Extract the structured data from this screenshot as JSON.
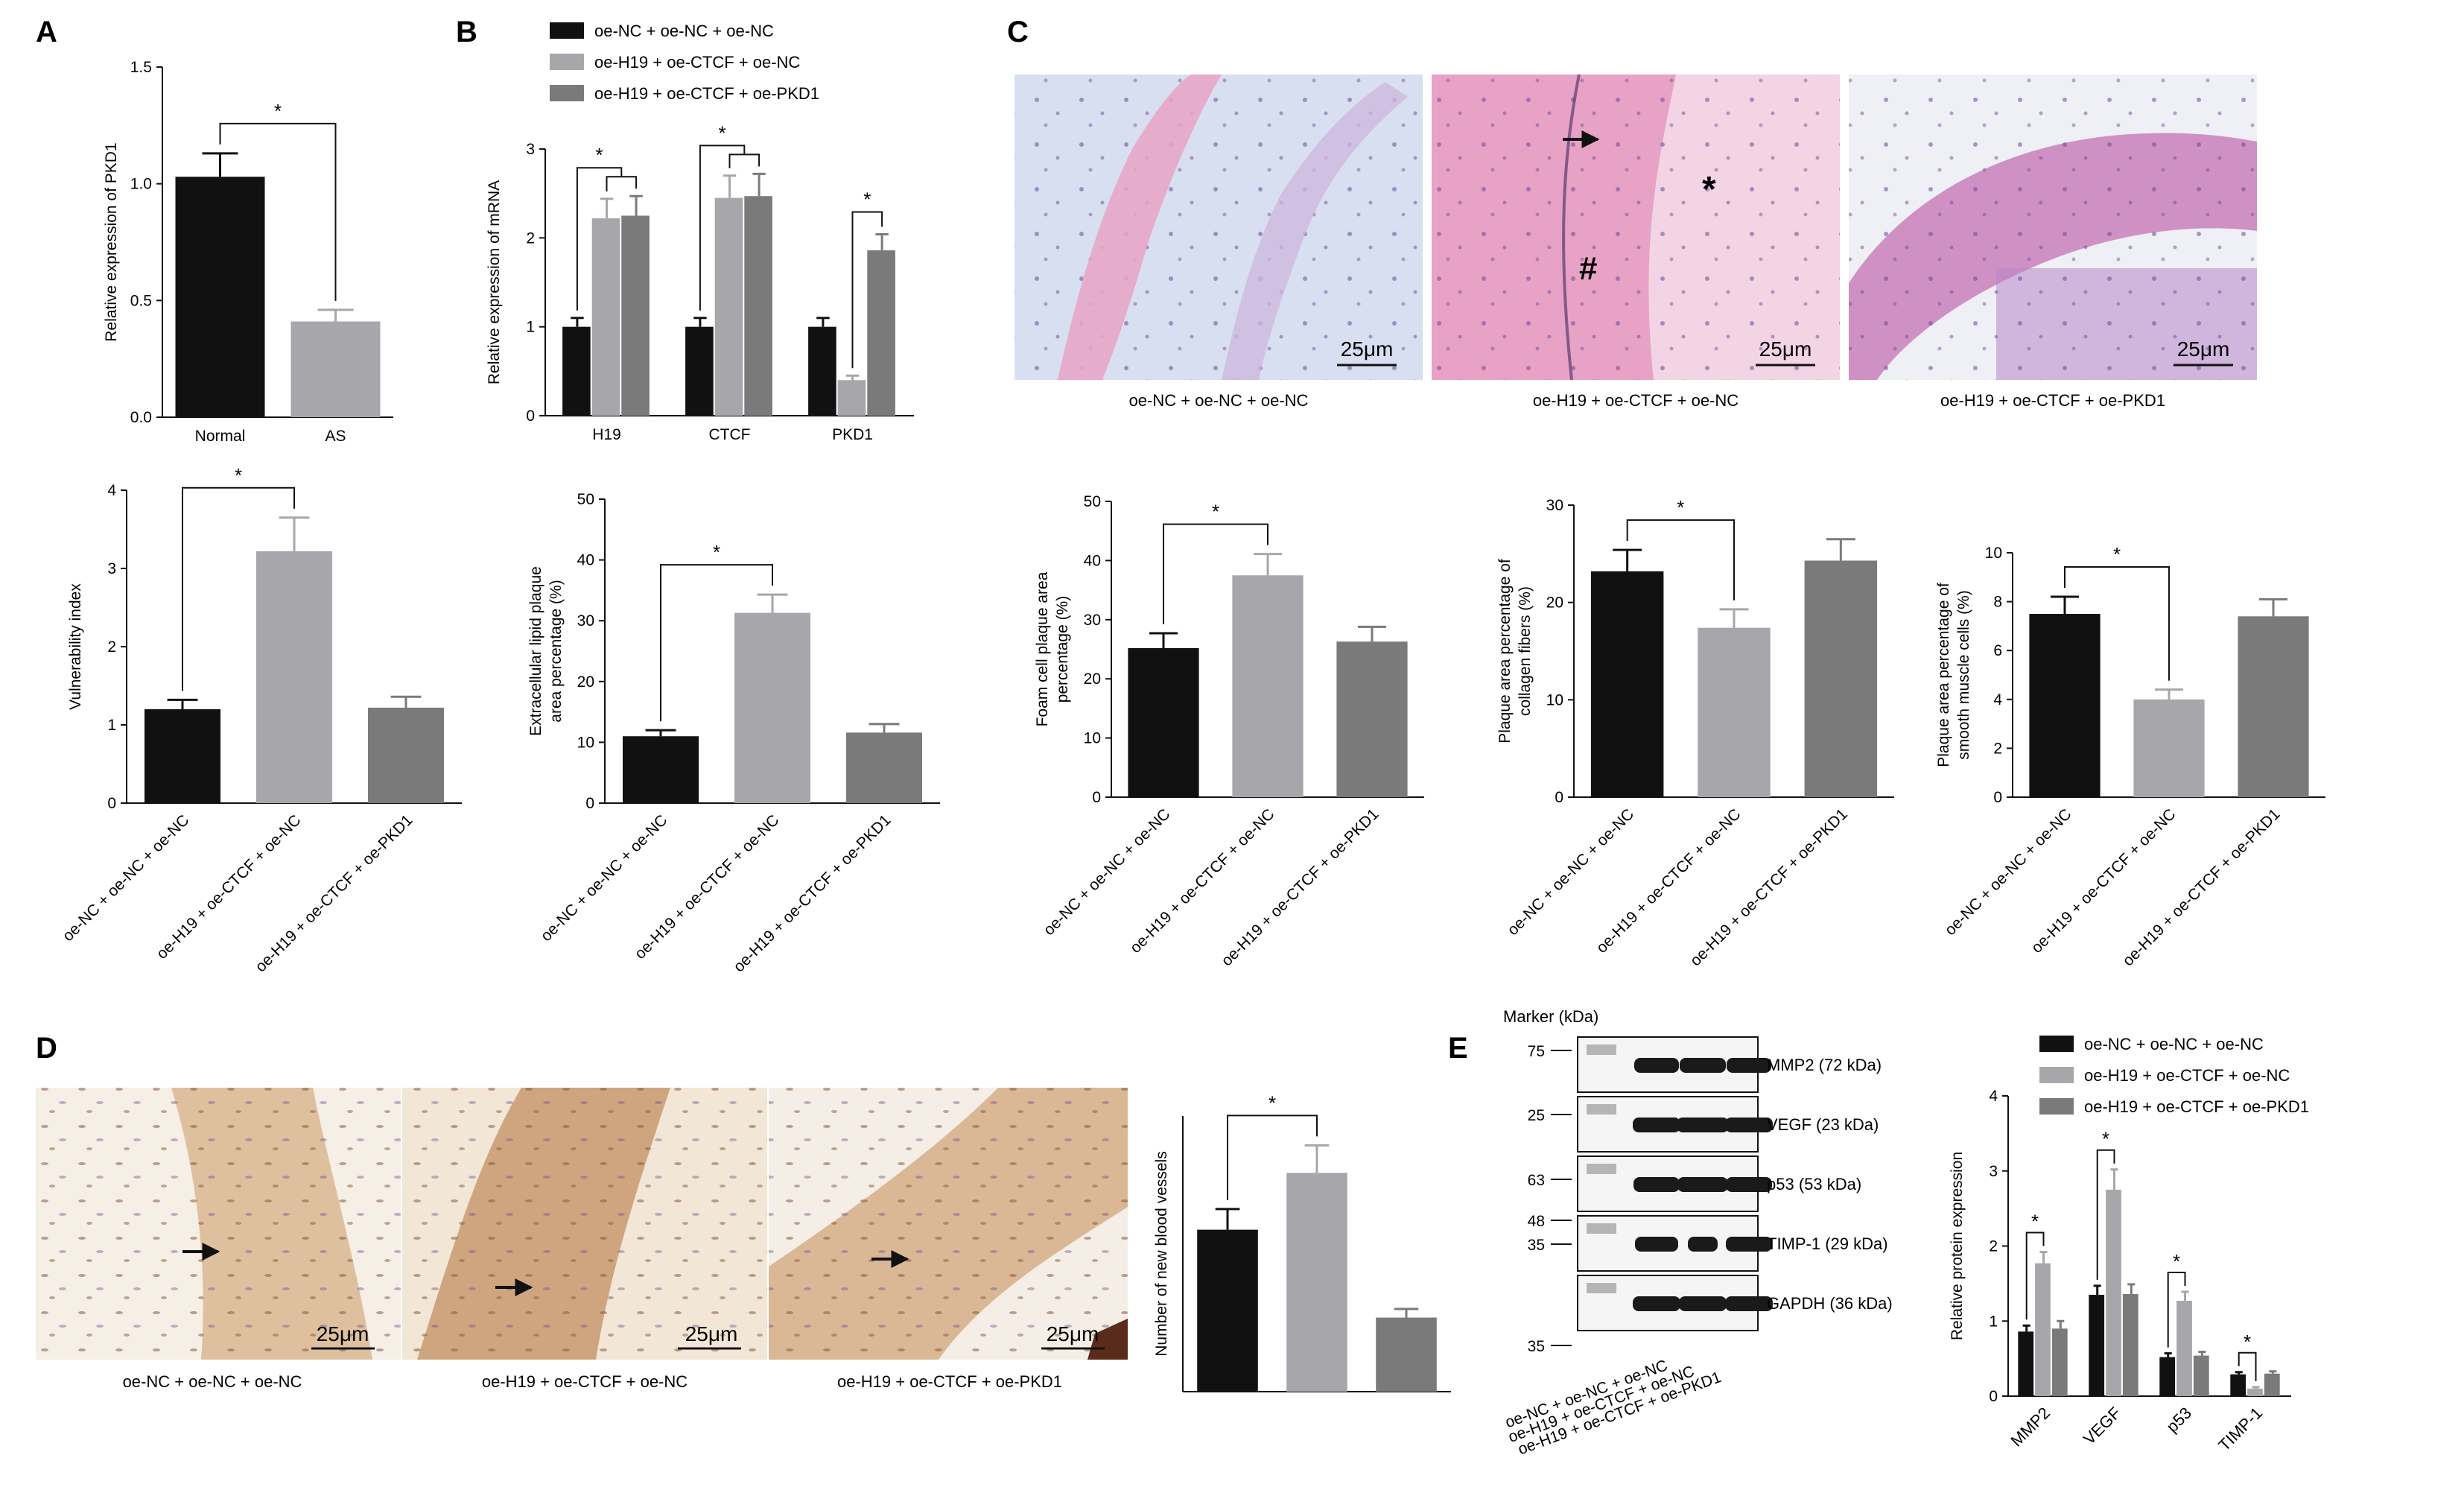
{
  "colors": {
    "s1": "#111111",
    "s2": "#a7a7ab",
    "s3": "#7a7a7a",
    "he_bg": "#d7dff0",
    "he_pink": "#d98fb8",
    "ihc_bg": "#f4ece2",
    "ihc_brown": "#b88a5c",
    "blot_bg": "#f5f5f5",
    "blot_band": "#1a1a1a"
  },
  "group_labels": [
    "oe-NC + oe-NC + oe-NC",
    "oe-H19 + oe-CTCF + oe-NC",
    "oe-H19 + oe-CTCF + oe-PKD1"
  ],
  "panels": {
    "A": {
      "letter": "A"
    },
    "B": {
      "letter": "B"
    },
    "C": {
      "letter": "C"
    },
    "D": {
      "letter": "D"
    },
    "E": {
      "letter": "E"
    },
    "C_images": {
      "scale_bar": "25μm",
      "captions": [
        "oe-NC + oe-NC + oe-NC",
        "oe-H19 + oe-CTCF + oe-NC",
        "oe-H19 + oe-CTCF + oe-PKD1"
      ],
      "markers": [
        "#",
        "*"
      ]
    },
    "D_images": {
      "scale_bar": "25μm",
      "captions": [
        "oe-NC + oe-NC + oe-NC",
        "oe-H19 + oe-CTCF + oe-NC",
        "oe-H19 + oe-CTCF + oe-PKD1"
      ]
    },
    "E_blot": {
      "marker_title": "Marker (kDa)",
      "marker_values": [
        "75",
        "25",
        "63",
        "48",
        "35",
        "35"
      ],
      "band_labels": [
        "MMP2 (72 kDa)",
        "VEGF (23 kDa)",
        "p53 (53 kDa)",
        "TIMP-1 (29 kDa)",
        "GAPDH (36 kDa)"
      ],
      "lane_labels": [
        "oe-NC + oe-NC + oe-NC",
        "oe-H19 + oe-CTCF + oe-NC",
        "oe-H19 + oe-CTCF + oe-PKD1"
      ]
    }
  },
  "chart_data": [
    {
      "id": "A_top",
      "type": "bar",
      "categories": [
        "Normal",
        "AS"
      ],
      "values": [
        1.03,
        0.41
      ],
      "errors": [
        0.1,
        0.05
      ],
      "ylabel": "Relative expression of PKD1",
      "ylim": [
        0,
        1.5
      ],
      "yticks": [
        0,
        0.5,
        1.0,
        1.5
      ],
      "ytick_labels": [
        "0.0",
        "0.5",
        "1.0",
        "1.5"
      ],
      "sig": [
        {
          "from": 0,
          "to": 1,
          "label": "*"
        }
      ],
      "colors": [
        "#111111",
        "#a7a7ab"
      ]
    },
    {
      "id": "B_top",
      "type": "bar",
      "categories": [
        "H19",
        "CTCF",
        "PKD1"
      ],
      "series": [
        {
          "name": "oe-NC + oe-NC + oe-NC",
          "values": [
            1.0,
            1.0,
            1.0
          ],
          "errors": [
            0.1,
            0.1,
            0.1
          ]
        },
        {
          "name": "oe-H19 + oe-CTCF + oe-NC",
          "values": [
            2.22,
            2.45,
            0.4
          ],
          "errors": [
            0.22,
            0.25,
            0.05
          ]
        },
        {
          "name": "oe-H19 + oe-CTCF + oe-PKD1",
          "values": [
            2.25,
            2.47,
            1.86
          ],
          "errors": [
            0.22,
            0.25,
            0.18
          ]
        }
      ],
      "ylabel": "Relative expression of mRNA",
      "ylim": [
        0,
        3
      ],
      "yticks": [
        0,
        1,
        2,
        3
      ],
      "ytick_labels": [
        "0",
        "1",
        "2",
        "3"
      ],
      "legend": "top"
    },
    {
      "id": "A_bottom",
      "type": "bar",
      "categories": [
        "oe-NC + oe-NC + oe-NC",
        "oe-H19 + oe-CTCF + oe-NC",
        "oe-H19 + oe-CTCF + oe-PKD1"
      ],
      "values": [
        1.2,
        3.22,
        1.22
      ],
      "errors": [
        0.12,
        0.43,
        0.14
      ],
      "ylabel": "Vulnerability index",
      "ylim": [
        0,
        4
      ],
      "yticks": [
        0,
        1,
        2,
        3,
        4
      ],
      "ytick_labels": [
        "0",
        "1",
        "2",
        "3",
        "4"
      ],
      "sig": [
        {
          "from": 0,
          "to": 1,
          "label": "*"
        }
      ],
      "colors": [
        "#111111",
        "#a7a7ab",
        "#7a7a7a"
      ]
    },
    {
      "id": "B_bottom",
      "type": "bar",
      "categories": [
        "oe-NC + oe-NC + oe-NC",
        "oe-H19 + oe-CTCF + oe-NC",
        "oe-H19 + oe-CTCF + oe-PKD1"
      ],
      "values": [
        11,
        31.3,
        11.6
      ],
      "errors": [
        1.0,
        3.0,
        1.4
      ],
      "ylabel": "Extracellular lipid plaque area percentage (%)",
      "ylim": [
        0,
        50
      ],
      "yticks": [
        0,
        10,
        20,
        30,
        40,
        50
      ],
      "ytick_labels": [
        "0",
        "10",
        "20",
        "30",
        "40",
        "50"
      ],
      "sig": [
        {
          "from": 0,
          "to": 1,
          "label": "*"
        }
      ],
      "colors": [
        "#111111",
        "#a7a7ab",
        "#7a7a7a"
      ]
    },
    {
      "id": "C_bottom_1",
      "type": "bar",
      "categories": [
        "oe-NC + oe-NC + oe-NC",
        "oe-H19 + oe-CTCF + oe-NC",
        "oe-H19 + oe-CTCF + oe-PKD1"
      ],
      "values": [
        25.2,
        37.5,
        26.3
      ],
      "errors": [
        2.5,
        3.6,
        2.5
      ],
      "ylabel": "Foam cell plaque area percentage (%)",
      "ylim": [
        0,
        50
      ],
      "yticks": [
        0,
        10,
        20,
        30,
        40,
        50
      ],
      "ytick_labels": [
        "0",
        "10",
        "20",
        "30",
        "40",
        "50"
      ],
      "sig": [
        {
          "from": 0,
          "to": 1,
          "label": "*"
        }
      ],
      "colors": [
        "#111111",
        "#a7a7ab",
        "#7a7a7a"
      ]
    },
    {
      "id": "C_bottom_2",
      "type": "bar",
      "categories": [
        "oe-NC + oe-NC + oe-NC",
        "oe-H19 + oe-CTCF + oe-NC",
        "oe-H19 + oe-CTCF + oe-PKD1"
      ],
      "values": [
        23.2,
        17.4,
        24.3
      ],
      "errors": [
        2.2,
        1.9,
        2.2
      ],
      "ylabel": "Plaque area percentage of collagen fibers (%)",
      "ylim": [
        0,
        30
      ],
      "yticks": [
        0,
        10,
        20,
        30
      ],
      "ytick_labels": [
        "0",
        "10",
        "20",
        "30"
      ],
      "sig": [
        {
          "from": 0,
          "to": 1,
          "label": "*"
        }
      ],
      "colors": [
        "#111111",
        "#a7a7ab",
        "#7a7a7a"
      ]
    },
    {
      "id": "C_bottom_3",
      "type": "bar",
      "categories": [
        "oe-NC + oe-NC + oe-NC",
        "oe-H19 + oe-CTCF + oe-NC",
        "oe-H19 + oe-CTCF + oe-PKD1"
      ],
      "values": [
        7.5,
        4.0,
        7.4
      ],
      "errors": [
        0.7,
        0.4,
        0.7
      ],
      "ylabel": "Plaque area percentage of smooth muscle cells (%)",
      "ylim": [
        0,
        10
      ],
      "yticks": [
        0,
        2,
        4,
        6,
        8,
        10
      ],
      "ytick_labels": [
        "0",
        "2",
        "4",
        "6",
        "8",
        "10"
      ],
      "sig": [
        {
          "from": 0,
          "to": 1,
          "label": "*"
        }
      ],
      "colors": [
        "#111111",
        "#a7a7ab",
        "#7a7a7a"
      ]
    },
    {
      "id": "D_chart",
      "type": "bar",
      "categories": [
        "oe-NC + oe-NC + oe-NC",
        "oe-H19 + oe-CTCF + oe-NC",
        "oe-H19 + oe-CTCF + oe-PKD1"
      ],
      "values": [
        47,
        63.5,
        21.5
      ],
      "errors": [
        6,
        8,
        2.5
      ],
      "ylabel": "Number of new blood vessels",
      "ylim": [
        0,
        80
      ],
      "sig": [
        {
          "from": 0,
          "to": 1,
          "label": "*"
        }
      ],
      "colors": [
        "#111111",
        "#a7a7ab",
        "#7a7a7a"
      ]
    },
    {
      "id": "E_chart",
      "type": "bar",
      "categories": [
        "MMP2",
        "VEGF",
        "p53",
        "TIMP-1"
      ],
      "series": [
        {
          "name": "oe-NC + oe-NC + oe-NC",
          "values": [
            0.86,
            1.35,
            0.52,
            0.29
          ],
          "errors": [
            0.08,
            0.12,
            0.05,
            0.03
          ]
        },
        {
          "name": "oe-H19 + oe-CTCF + oe-NC",
          "values": [
            1.77,
            2.75,
            1.27,
            0.1
          ],
          "errors": [
            0.15,
            0.27,
            0.12,
            0.02
          ]
        },
        {
          "name": "oe-H19 + oe-CTCF + oe-PKD1",
          "values": [
            0.9,
            1.36,
            0.54,
            0.3
          ],
          "errors": [
            0.1,
            0.13,
            0.05,
            0.03
          ]
        }
      ],
      "ylabel": "Relative protein expression",
      "ylim": [
        0,
        4
      ],
      "yticks": [
        0,
        1,
        2,
        3,
        4
      ],
      "ytick_labels": [
        "0",
        "1",
        "2",
        "3",
        "4"
      ],
      "legend": "top"
    }
  ]
}
